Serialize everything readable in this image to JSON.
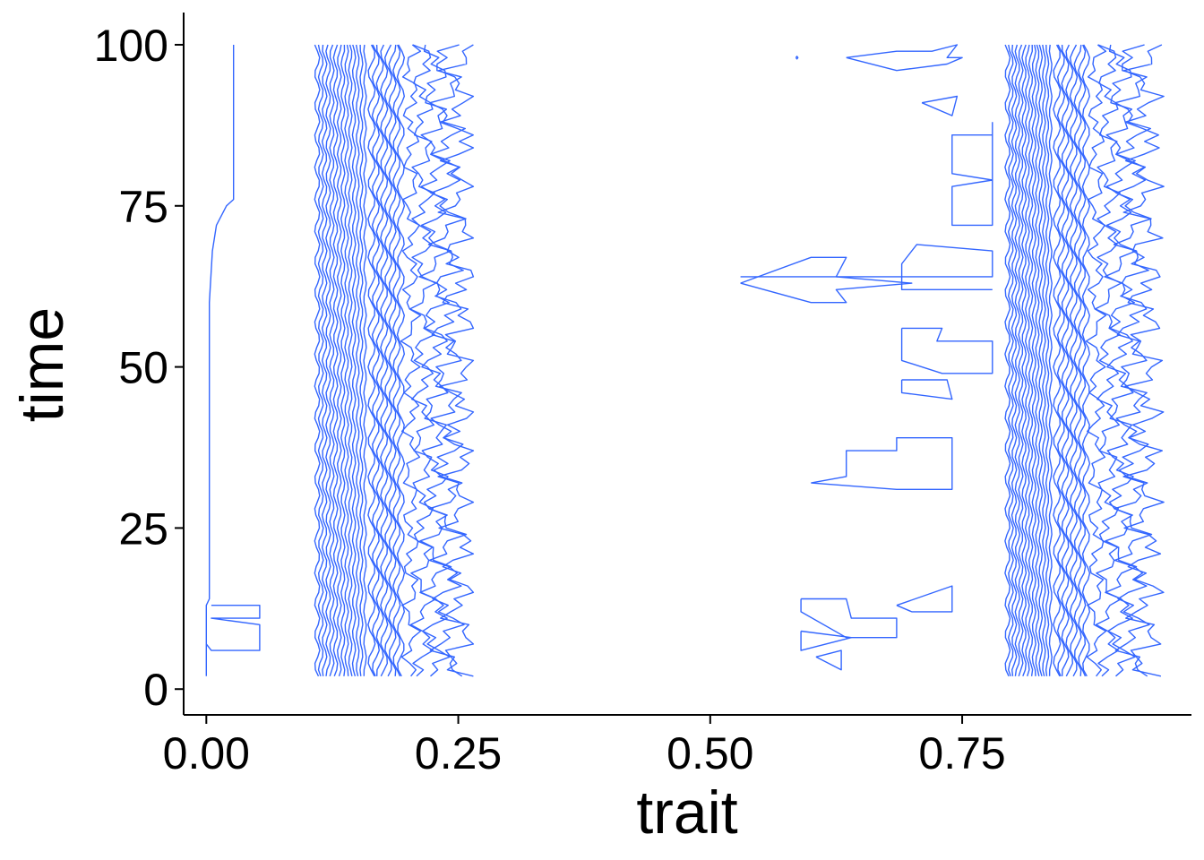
{
  "chart_data": {
    "type": "contour",
    "title": "",
    "xlabel": "trait",
    "ylabel": "time",
    "xlim": [
      -0.0225,
      0.9775
    ],
    "ylim": [
      -4,
      105
    ],
    "x_ticks": [
      0.0,
      0.25,
      0.5,
      0.75
    ],
    "x_tick_labels": [
      "0.00",
      "0.25",
      "0.50",
      "0.75"
    ],
    "y_ticks": [
      0,
      25,
      50,
      75,
      100
    ],
    "y_tick_labels": [
      "0",
      "25",
      "50",
      "75",
      "100"
    ],
    "grid": false,
    "legend": "none",
    "line_color": "#3366FF",
    "time_range": [
      2,
      100
    ],
    "dense_bands": [
      {
        "name": "band-1",
        "x_min": 0.11,
        "x_max": 0.265,
        "center": 0.16,
        "secondary_edge": 0.195
      },
      {
        "name": "band-2",
        "x_min": 0.795,
        "x_max": 0.95,
        "center": 0.84,
        "secondary_edge": 0.875
      }
    ],
    "isolated_contours": [
      {
        "name": "left-edge-line",
        "points": [
          [
            0.0,
            2
          ],
          [
            0.0,
            5
          ],
          [
            0.0,
            13
          ],
          [
            0.003,
            14
          ],
          [
            0.003,
            60
          ],
          [
            0.006,
            68
          ],
          [
            0.01,
            72
          ],
          [
            0.02,
            75
          ],
          [
            0.027,
            76
          ],
          [
            0.027,
            100
          ]
        ]
      },
      {
        "name": "left-edge-notch",
        "points": [
          [
            0.005,
            13
          ],
          [
            0.053,
            13
          ],
          [
            0.053,
            11
          ],
          [
            0.005,
            11
          ],
          [
            0.053,
            10
          ],
          [
            0.053,
            6
          ],
          [
            0.005,
            6
          ],
          [
            0.0,
            7
          ]
        ]
      },
      {
        "name": "right-fragment-top",
        "points": [
          [
            0.635,
            98
          ],
          [
            0.685,
            99
          ],
          [
            0.72,
            99
          ],
          [
            0.745,
            100
          ],
          [
            0.735,
            98
          ],
          [
            0.75,
            98
          ],
          [
            0.735,
            97
          ],
          [
            0.685,
            96
          ],
          [
            0.635,
            98
          ]
        ]
      },
      {
        "name": "right-fragment-small",
        "points": [
          [
            0.71,
            91
          ],
          [
            0.745,
            92
          ],
          [
            0.74,
            89
          ],
          [
            0.71,
            91
          ]
        ]
      },
      {
        "name": "right-fragment-tall",
        "points": [
          [
            0.78,
            88
          ],
          [
            0.78,
            86
          ],
          [
            0.74,
            86
          ],
          [
            0.74,
            80
          ],
          [
            0.78,
            79
          ],
          [
            0.74,
            78
          ],
          [
            0.74,
            72
          ],
          [
            0.78,
            72
          ],
          [
            0.78,
            88
          ]
        ]
      },
      {
        "name": "right-fragment-mid-upper",
        "points": [
          [
            0.53,
            63
          ],
          [
            0.6,
            67
          ],
          [
            0.635,
            67
          ],
          [
            0.625,
            64
          ],
          [
            0.7,
            63
          ],
          [
            0.625,
            62
          ],
          [
            0.635,
            60
          ],
          [
            0.6,
            60
          ],
          [
            0.53,
            63
          ]
        ]
      },
      {
        "name": "right-fragment-mid-arm",
        "points": [
          [
            0.53,
            64
          ],
          [
            0.78,
            64
          ],
          [
            0.78,
            68
          ],
          [
            0.705,
            69
          ],
          [
            0.69,
            66
          ],
          [
            0.69,
            62
          ],
          [
            0.78,
            62
          ]
        ]
      },
      {
        "name": "right-fragment-mid-lower",
        "points": [
          [
            0.69,
            56
          ],
          [
            0.73,
            56
          ],
          [
            0.725,
            54
          ],
          [
            0.78,
            54
          ],
          [
            0.78,
            49
          ],
          [
            0.73,
            49
          ],
          [
            0.69,
            51
          ],
          [
            0.69,
            56
          ]
        ]
      },
      {
        "name": "right-fragment-small-low",
        "points": [
          [
            0.69,
            48
          ],
          [
            0.735,
            48
          ],
          [
            0.74,
            45
          ],
          [
            0.69,
            46
          ],
          [
            0.69,
            48
          ]
        ]
      },
      {
        "name": "right-fragment-low",
        "points": [
          [
            0.6,
            32
          ],
          [
            0.635,
            33
          ],
          [
            0.635,
            37
          ],
          [
            0.685,
            37
          ],
          [
            0.685,
            39
          ],
          [
            0.74,
            39
          ],
          [
            0.74,
            31
          ],
          [
            0.685,
            31
          ],
          [
            0.6,
            32
          ]
        ]
      },
      {
        "name": "right-fragment-bottom-a",
        "points": [
          [
            0.59,
            14
          ],
          [
            0.635,
            14
          ],
          [
            0.64,
            11
          ],
          [
            0.685,
            11
          ],
          [
            0.685,
            8
          ],
          [
            0.635,
            8
          ],
          [
            0.59,
            12
          ],
          [
            0.59,
            14
          ]
        ]
      },
      {
        "name": "right-fragment-bottom-b",
        "points": [
          [
            0.59,
            9
          ],
          [
            0.64,
            8
          ],
          [
            0.59,
            6
          ],
          [
            0.59,
            9
          ]
        ]
      },
      {
        "name": "right-fragment-bottom-c",
        "points": [
          [
            0.685,
            13
          ],
          [
            0.74,
            16
          ],
          [
            0.74,
            12
          ],
          [
            0.7,
            12
          ],
          [
            0.685,
            13
          ]
        ]
      },
      {
        "name": "right-fragment-bottom-d",
        "points": [
          [
            0.605,
            5
          ],
          [
            0.63,
            6
          ],
          [
            0.63,
            3
          ],
          [
            0.605,
            5
          ]
        ]
      },
      {
        "name": "right-dot",
        "points": [
          [
            0.585,
            98
          ],
          [
            0.586,
            98.2
          ],
          [
            0.587,
            98
          ],
          [
            0.586,
            97.8
          ],
          [
            0.585,
            98
          ]
        ]
      }
    ]
  }
}
